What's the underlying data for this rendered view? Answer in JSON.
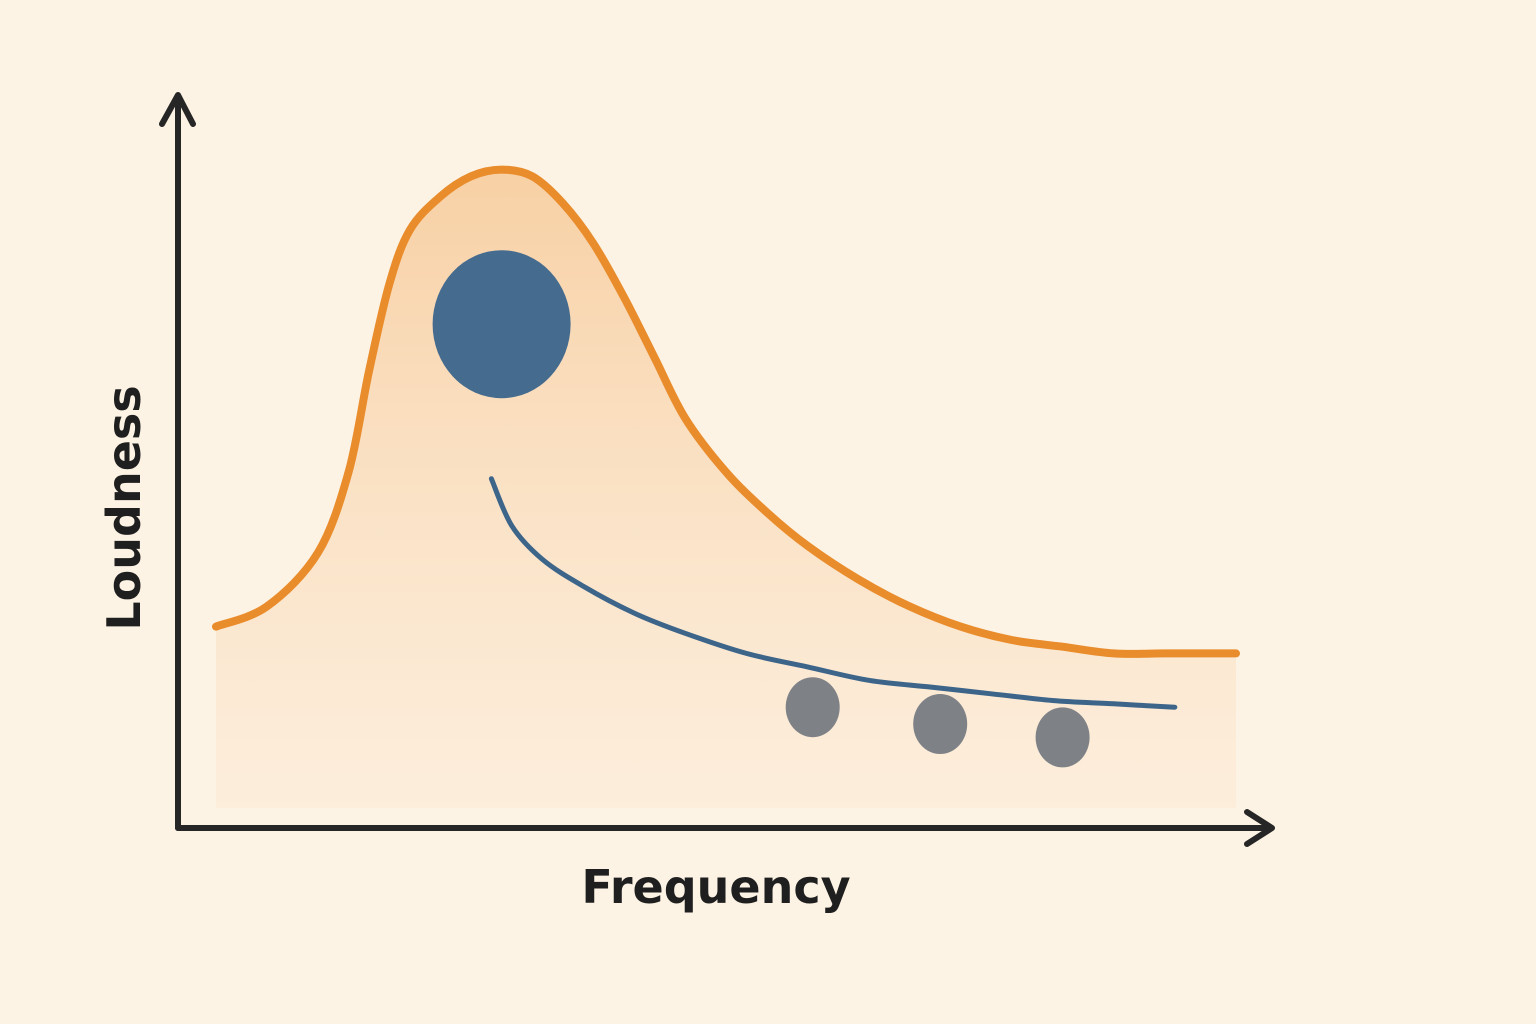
{
  "chart_data": {
    "type": "line",
    "title": "",
    "xlabel": "Frequency",
    "ylabel": "Loudness",
    "xlim": [
      0,
      100
    ],
    "ylim": [
      0,
      100
    ],
    "grid": false,
    "legend": "none",
    "series": [
      {
        "style": "area",
        "color": "#e98c2c",
        "fill": "#f8d0a4",
        "x": [
          0,
          5,
          10,
          13,
          15,
          17,
          19,
          22,
          25,
          28,
          31,
          34,
          37,
          40,
          43,
          46,
          50,
          54,
          58,
          63,
          68,
          73,
          78,
          83,
          88,
          93,
          96,
          100
        ],
        "y": [
          27,
          30,
          38,
          50,
          65,
          78,
          86,
          91,
          94,
          95,
          94,
          90,
          84,
          76,
          67,
          58,
          50,
          44,
          39,
          34,
          30,
          27,
          25,
          24,
          23,
          23,
          23,
          23
        ]
      },
      {
        "style": "line",
        "color": "#3d6489",
        "x": [
          27,
          29,
          32,
          36,
          41,
          46,
          52,
          58,
          64,
          70,
          76,
          82,
          88,
          94
        ],
        "y": [
          49,
          42,
          37,
          33,
          29,
          26,
          23,
          21,
          19,
          18,
          17,
          16,
          15.5,
          15
        ]
      }
    ],
    "points": [
      {
        "x": 28,
        "y": 72,
        "size": "large",
        "color": "#456b8f"
      },
      {
        "x": 58.5,
        "y": 15,
        "size": "small",
        "color": "#7e8287"
      },
      {
        "x": 71,
        "y": 12.5,
        "size": "small",
        "color": "#7e8287"
      },
      {
        "x": 83,
        "y": 10.5,
        "size": "small",
        "color": "#7e8287"
      }
    ],
    "colors": {
      "background": "#fdf3e4",
      "axis": "#262626",
      "area_top": "#f8d0a4",
      "area_bottom": "#fbe9d4"
    }
  }
}
